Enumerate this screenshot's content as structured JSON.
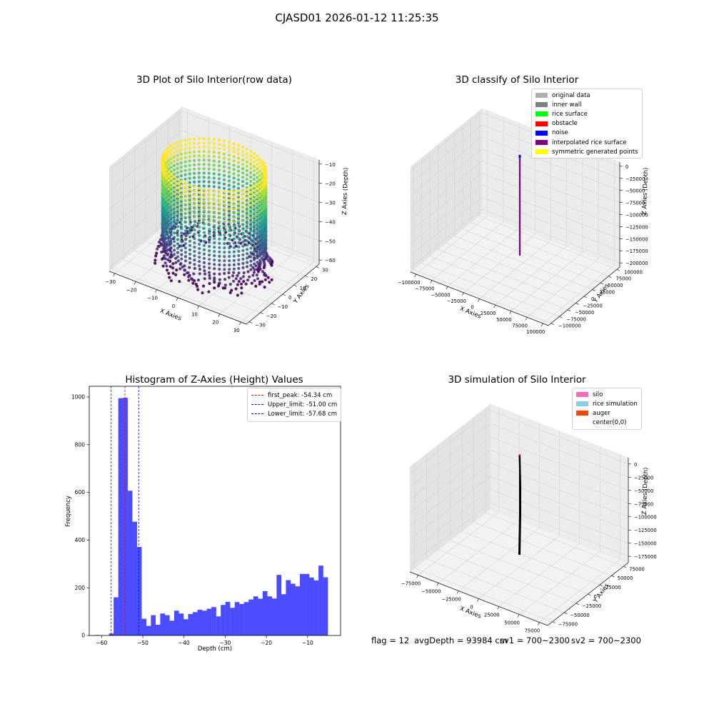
{
  "suptitle": "CJASD01 2026-01-12 11:25:35",
  "status": {
    "flag": "flag = 12",
    "avg_depth": "avgDepth = 93984 cm",
    "sv1": "sv1 = 700~2300",
    "sv2": "sv2 = 700~2300"
  },
  "chart_data": [
    {
      "type": "scatter",
      "projection": "3d",
      "title": "3D Plot of Silo Interior(row data)",
      "xlabel": "X Axies",
      "ylabel": "Y Axies",
      "zlabel": "Z Axies (Depth)",
      "xticks": [
        "−30",
        "−20",
        "−10",
        "0",
        "10",
        "20",
        "30"
      ],
      "yticks": [
        "−30",
        "−20",
        "−10",
        "0",
        "10",
        "20",
        "30"
      ],
      "zticks": [
        "−60",
        "−50",
        "−40",
        "−30",
        "−20",
        "−10"
      ],
      "xlim": [
        -33,
        33
      ],
      "ylim": [
        -33,
        33
      ],
      "zlim": [
        -66,
        -6
      ],
      "shape": "cylinder",
      "radius": 22,
      "z_range": [
        -64,
        -7
      ],
      "colormap": "viridis"
    },
    {
      "type": "scatter",
      "projection": "3d",
      "title": "3D classify of Silo Interior",
      "xlabel": "X Axies",
      "ylabel": "Y Axies",
      "zlabel": "Z Axies (Depth)",
      "xticks": [
        "−100000",
        "−75000",
        "−50000",
        "−25000",
        "0",
        "25000",
        "50000",
        "75000",
        "100000"
      ],
      "yticks": [
        "−100000",
        "−75000",
        "−50000",
        "−25000",
        "0",
        "25000",
        "50000",
        "75000",
        "100000"
      ],
      "zticks": [
        "−200000",
        "−175000",
        "−150000",
        "−125000",
        "−100000",
        "−75000",
        "−50000",
        "−25000",
        "0"
      ],
      "legend": [
        {
          "label": "original data",
          "color": "#b0b0b0"
        },
        {
          "label": "inner wall",
          "color": "#808080"
        },
        {
          "label": "rice surface",
          "color": "#00ff00"
        },
        {
          "label": "obstacle",
          "color": "#ff0000"
        },
        {
          "label": "noise",
          "color": "#0000ff"
        },
        {
          "label": "interpolated rice surface",
          "color": "#800080"
        },
        {
          "label": "symmetric generated points",
          "color": "#ffff00"
        }
      ],
      "series_extent": {
        "x": 0,
        "y": 0,
        "z_range": [
          -180000,
          0
        ]
      }
    },
    {
      "type": "bar",
      "title": "Histogram of Z-Axies (Height) Values",
      "xlabel": "Depth (cm)",
      "ylabel": "Frequency",
      "xlim": [
        -63,
        -2
      ],
      "ylim": [
        0,
        1045
      ],
      "xticks": [
        -60,
        -50,
        -40,
        -30,
        -20,
        -10
      ],
      "yticks": [
        0,
        200,
        400,
        600,
        800,
        1000
      ],
      "bin_start": -61.6,
      "bin_width": 1.13,
      "values": [
        2,
        0,
        0,
        8,
        160,
        995,
        997,
        607,
        477,
        371,
        70,
        40,
        85,
        45,
        92,
        85,
        62,
        104,
        92,
        68,
        90,
        98,
        108,
        104,
        112,
        119,
        80,
        128,
        141,
        116,
        140,
        132,
        140,
        151,
        164,
        154,
        186,
        164,
        155,
        254,
        173,
        232,
        217,
        206,
        258,
        258,
        243,
        231,
        293,
        244
      ],
      "bar_color": "#4c4cff",
      "lines": [
        {
          "label": "first_peak: -54.34 cm",
          "x": -54.34,
          "color": "#ff0000"
        },
        {
          "label": "Upper_limit: -51.00 cm",
          "x": -51.0,
          "color": "#0000ff"
        },
        {
          "label": "Lower_limit: -57.68 cm",
          "x": -57.68,
          "color": "#0000ff"
        }
      ],
      "legend_position": "upper right"
    },
    {
      "type": "line",
      "projection": "3d",
      "title": "3D simulation of Silo Interior",
      "xlabel": "X Axies",
      "ylabel": "Y Axies",
      "zlabel": "Z Axies (Depth)",
      "xticks": [
        "−75000",
        "−50000",
        "−25000",
        "0",
        "25000",
        "50000",
        "75000"
      ],
      "yticks": [
        "−75000",
        "−50000",
        "−25000",
        "0",
        "25000",
        "50000",
        "75000"
      ],
      "zticks": [
        "−175000",
        "−150000",
        "−125000",
        "−100000",
        "−75000",
        "−50000",
        "−25000",
        "0"
      ],
      "legend": [
        {
          "label": "silo",
          "color": "#ff69b4"
        },
        {
          "label": "rice simulation",
          "color": "#87ceeb"
        },
        {
          "label": "auger",
          "color": "#ff4500"
        },
        {
          "label": "center(0,0)",
          "color": "#ffffff"
        }
      ],
      "series_extent": {
        "x": 0,
        "y": 0,
        "z_range": [
          -165000,
          -5000
        ]
      }
    }
  ]
}
